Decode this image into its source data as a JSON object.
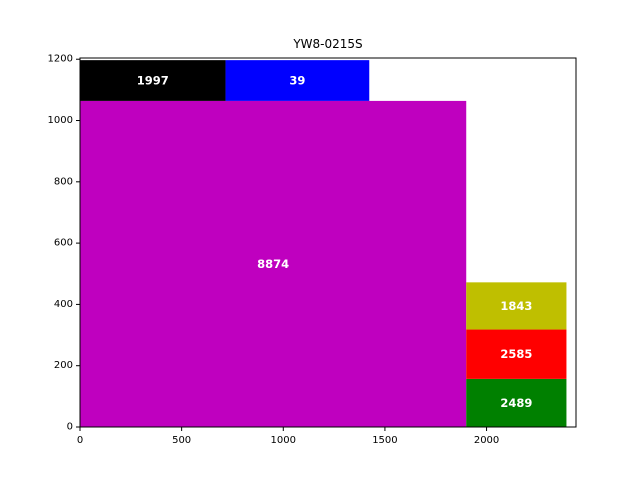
{
  "chart_data": {
    "type": "treemap",
    "title": "YW8-0215S",
    "xlim": [
      0,
      2440
    ],
    "ylim": [
      0,
      1204
    ],
    "xticks": [
      0,
      500,
      1000,
      1500,
      2000
    ],
    "yticks": [
      0,
      200,
      400,
      600,
      800,
      1000,
      1200
    ],
    "grid": false,
    "rects": [
      {
        "label": "8874",
        "x0": 0,
        "y0": 0,
        "x1": 1900,
        "y1": 1064,
        "color": "#bf00bf"
      },
      {
        "label": "1997",
        "x0": 0,
        "y0": 1064,
        "x1": 716,
        "y1": 1197,
        "color": "#000000"
      },
      {
        "label": "39",
        "x0": 716,
        "y0": 1064,
        "x1": 1423,
        "y1": 1197,
        "color": "#0000ff"
      },
      {
        "label": "2489",
        "x0": 1900,
        "y0": 0,
        "x1": 2393,
        "y1": 157,
        "color": "#008000"
      },
      {
        "label": "2585",
        "x0": 1900,
        "y0": 157,
        "x1": 2393,
        "y1": 318,
        "color": "#ff0000"
      },
      {
        "label": "1843",
        "x0": 1900,
        "y0": 318,
        "x1": 2393,
        "y1": 472,
        "color": "#bfbf00"
      }
    ]
  }
}
